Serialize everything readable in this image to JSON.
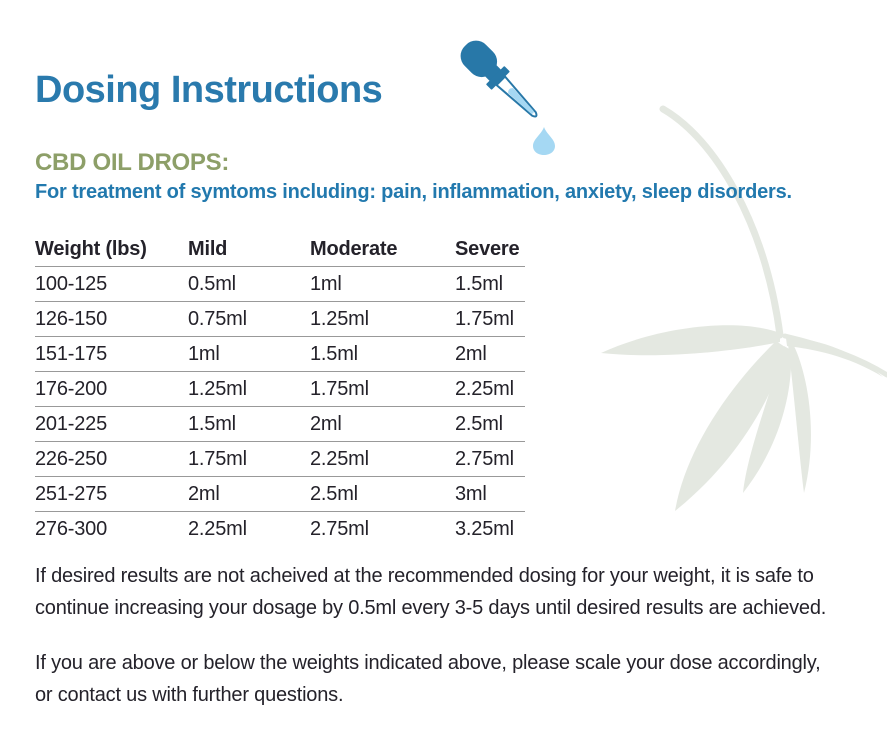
{
  "page": {
    "title": "Dosing Instructions",
    "section_heading": "CBD OIL DROPS:",
    "subtitle": "For treatment of symtoms including: pain, inflammation, anxiety, sleep disorders.",
    "colors": {
      "title_blue": "#2a7aad",
      "subtitle_blue": "#2279ae",
      "olive_green": "#8d9f68",
      "body_text": "#24222a",
      "table_rule": "#999999",
      "dropper_dark_blue": "#2878a8",
      "dropper_light_blue": "#a5d8f3",
      "leaf_pale_green": "#e4e8e1"
    },
    "icons": {
      "dropper": "eyedropper with falling drop",
      "leaf": "pale hemp leaf decoration"
    }
  },
  "table": {
    "headers": [
      "Weight (lbs)",
      "Mild",
      "Moderate",
      "Severe"
    ],
    "rows": [
      [
        "100-125",
        "0.5ml",
        "1ml",
        "1.5ml"
      ],
      [
        "126-150",
        "0.75ml",
        "1.25ml",
        "1.75ml"
      ],
      [
        "151-175",
        "1ml",
        "1.5ml",
        "2ml"
      ],
      [
        "176-200",
        "1.25ml",
        "1.75ml",
        "2.25ml"
      ],
      [
        "201-225",
        "1.5ml",
        "2ml",
        "2.5ml"
      ],
      [
        "226-250",
        "1.75ml",
        "2.25ml",
        "2.75ml"
      ],
      [
        "251-275",
        "2ml",
        "2.5ml",
        "3ml"
      ],
      [
        "276-300",
        "2.25ml",
        "2.75ml",
        "3.25ml"
      ]
    ]
  },
  "notes": {
    "note1": {
      "lines": [
        "If desired results are not acheived at the recommended dosing for your weight, it is safe to",
        "continue increasing your dosage by 0.5ml every 3-5 days until desired results are achieved."
      ]
    },
    "note2": {
      "lines": [
        "If you are above or below the weights indicated above, please scale your dose accordingly,",
        "or contact us with further questions."
      ]
    }
  }
}
